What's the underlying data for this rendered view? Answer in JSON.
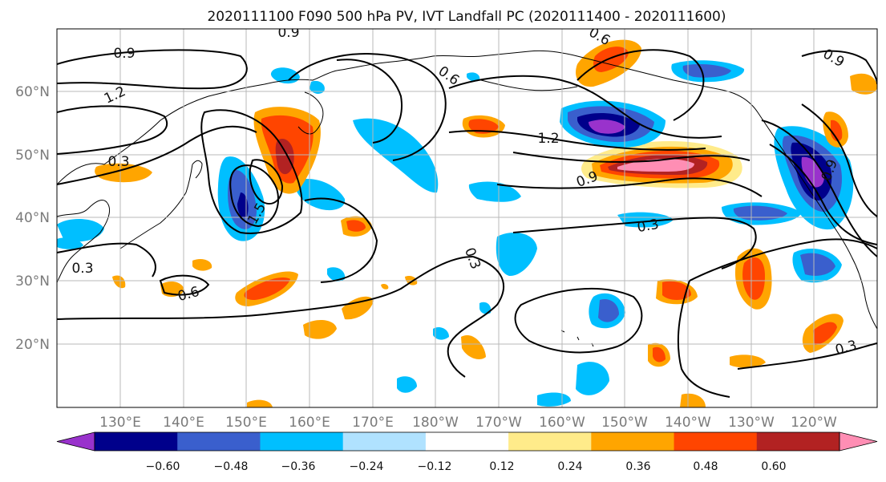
{
  "title": "2020111100 F090 500 hPa PV, IVT Landfall PC (2020111400 - 2020111600)",
  "lat_labels": [
    "60°N",
    "50°N",
    "40°N",
    "30°N",
    "20°N"
  ],
  "lon_labels": [
    "130°E",
    "140°E",
    "150°E",
    "160°E",
    "170°E",
    "180°W",
    "170°W",
    "160°W",
    "150°W",
    "140°W",
    "130°W",
    "120°W"
  ],
  "colorbar": {
    "ticks": [
      "−0.60",
      "−0.48",
      "−0.36",
      "−0.24",
      "−0.12",
      "0.12",
      "0.24",
      "0.36",
      "0.48",
      "0.60"
    ],
    "colors": [
      "#9932cc",
      "#00008b",
      "#3a5fcd",
      "#00bfff",
      "#b0e2ff",
      "#ffffff",
      "#ffeb8a",
      "#ffa500",
      "#ff4500",
      "#b22222",
      "#ff8eb4"
    ]
  },
  "contour_labels": [
    "0.9",
    "1.2",
    "0.3",
    "0.6",
    "0.9",
    "0.6",
    "1.2",
    "0.9",
    "0.3",
    "0.3",
    "0.6",
    "0.3",
    "0.9",
    "0.3",
    "1.5",
    "0.9"
  ],
  "colors": {
    "purple": "#9932cc",
    "navy": "#00008b",
    "blue": "#3a5fcd",
    "cyan": "#00bfff",
    "lightblue": "#b0e2ff",
    "yellow": "#ffeb8a",
    "orange": "#ffa500",
    "red": "#ff4500",
    "darkred": "#b22222",
    "pink": "#ff8eb4"
  }
}
